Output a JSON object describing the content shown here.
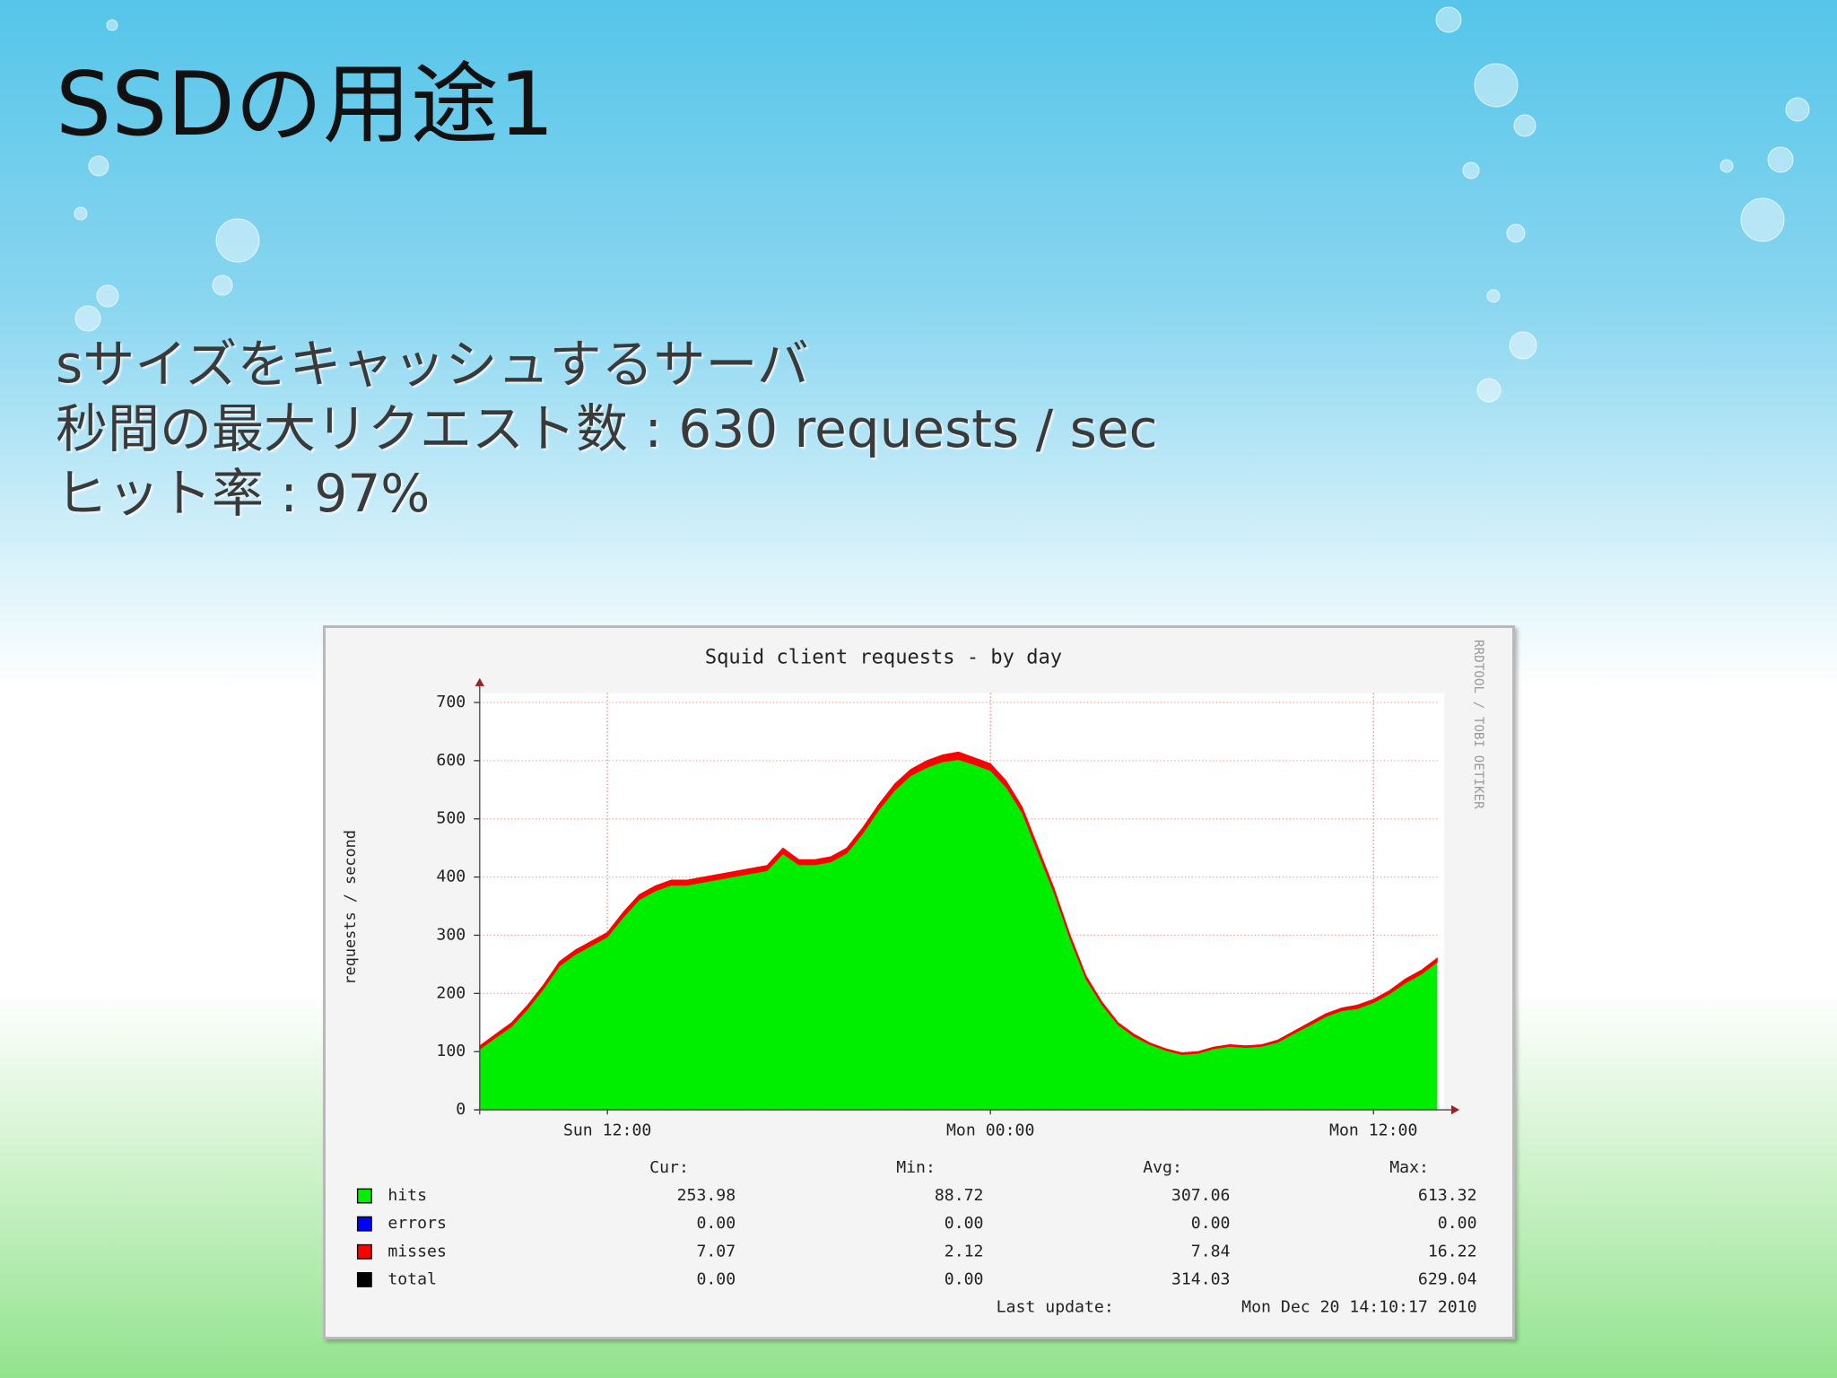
{
  "slide": {
    "title": "SSDの用途1",
    "bullets": [
      "sサイズをキャッシュするサーバ",
      "秒間の最大リクエスト数 : 630 requests / sec",
      "ヒット率 : 97%"
    ]
  },
  "chart_data": {
    "type": "area",
    "stacked": true,
    "title": "Squid client requests - by day",
    "ylabel": "requests / second",
    "watermark": "RRDTOOL / TOBI OETIKER",
    "categories": [
      null,
      null,
      null,
      null,
      null,
      null,
      null,
      null,
      "Sun 12:00",
      null,
      null,
      null,
      null,
      null,
      null,
      null,
      null,
      null,
      null,
      null,
      null,
      null,
      null,
      null,
      null,
      null,
      null,
      null,
      null,
      null,
      null,
      null,
      "Mon 00:00",
      null,
      null,
      null,
      null,
      null,
      null,
      null,
      null,
      null,
      null,
      null,
      null,
      null,
      null,
      null,
      null,
      null,
      null,
      null,
      null,
      null,
      null,
      null,
      "Mon 12:00",
      null,
      null,
      null,
      null
    ],
    "ylim": [
      0,
      700
    ],
    "yticks": [
      0,
      100,
      200,
      300,
      400,
      500,
      600,
      700
    ],
    "grid": true,
    "stats_columns": [
      "Cur:",
      "Min:",
      "Avg:",
      "Max:"
    ],
    "series": [
      {
        "name": "hits",
        "color": "#00ee00",
        "values": [
          104,
          124,
          143,
          173,
          208,
          247,
          267,
          282,
          297,
          331,
          361,
          376,
          386,
          386,
          391,
          396,
          401,
          406,
          411,
          440,
          421,
          421,
          426,
          441,
          475,
          515,
          549,
          574,
          588,
          598,
          602,
          593,
          583,
          554,
          510,
          441,
          372,
          293,
          224,
          180,
          146,
          126,
          112,
          102,
          95,
          97,
          105,
          109,
          107,
          109,
          116,
          131,
          145,
          160,
          170,
          174,
          184,
          199,
          218,
          233,
          254
        ],
        "stats": [
          "253.98",
          "88.72",
          "307.06",
          "613.32"
        ]
      },
      {
        "name": "misses",
        "color": "#ff0000",
        "values": [
          6,
          6,
          7,
          7,
          7,
          8,
          8,
          8,
          8,
          9,
          9,
          9,
          9,
          9,
          9,
          9,
          9,
          9,
          9,
          10,
          9,
          9,
          9,
          9,
          10,
          10,
          11,
          11,
          12,
          12,
          13,
          12,
          12,
          11,
          10,
          9,
          8,
          7,
          6,
          5,
          4,
          4,
          3,
          3,
          3,
          3,
          3,
          3,
          3,
          3,
          4,
          4,
          5,
          5,
          5,
          6,
          6,
          6,
          7,
          7,
          7
        ],
        "stats": [
          "7.07",
          "2.12",
          "7.84",
          "16.22"
        ]
      }
    ],
    "legend_only": [
      {
        "name": "errors",
        "color": "#0000ff",
        "stats": [
          "0.00",
          "0.00",
          "0.00",
          "0.00"
        ]
      },
      {
        "name": "total",
        "color": "#000000",
        "stats": [
          "0.00",
          "0.00",
          "314.03",
          "629.04"
        ]
      }
    ],
    "last_update_label": "Last update:",
    "last_update": "Mon Dec 20 14:10:17 2010"
  }
}
